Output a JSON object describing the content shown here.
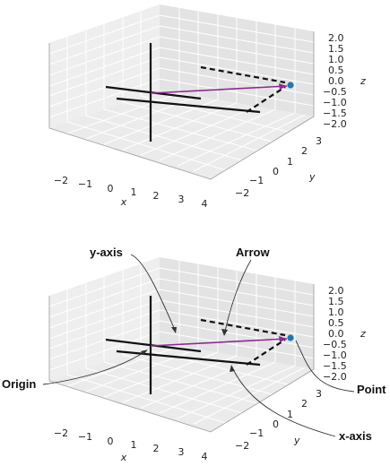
{
  "panels": [
    {
      "id": "top",
      "x_ticks": [
        "−2",
        "−1",
        "0",
        "1",
        "2",
        "3",
        "4"
      ],
      "y_ticks": [
        "−2",
        "−1",
        "0",
        "1",
        "2",
        "3"
      ],
      "z_ticks": [
        "2.0",
        "1.5",
        "1.0",
        "0.5",
        "0.0",
        "−0.5",
        "−1.0",
        "−1.5",
        "−2.0"
      ],
      "x_label": "x",
      "y_label": "y",
      "z_label": "z"
    },
    {
      "id": "bottom",
      "x_ticks": [
        "−2",
        "−1",
        "0",
        "1",
        "2",
        "3",
        "4"
      ],
      "y_ticks": [
        "−2",
        "−1",
        "0",
        "1",
        "2",
        "3"
      ],
      "z_ticks": [
        "2.0",
        "1.5",
        "1.0",
        "0.5",
        "0.0",
        "−0.5",
        "−1.0",
        "−1.5",
        "−2.0"
      ],
      "x_label": "x",
      "y_label": "y",
      "z_label": "z"
    }
  ],
  "annotations": {
    "y_axis": "y-axis",
    "arrow": "Arrow",
    "origin": "Origin",
    "point": "Point",
    "x_axis": "x-axis"
  },
  "colors": {
    "arrow": "#8b2a8f",
    "point": "#1f77b4",
    "axes": "#111111",
    "pane": "#eeeeee"
  }
}
